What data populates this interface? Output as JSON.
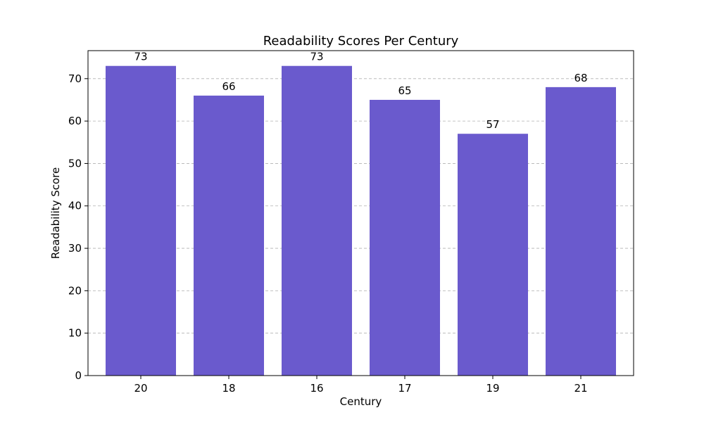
{
  "chart_data": {
    "type": "bar",
    "title": "Readability Scores Per Century",
    "xlabel": "Century",
    "ylabel": "Readability Score",
    "categories": [
      "20",
      "18",
      "16",
      "17",
      "19",
      "21"
    ],
    "values": [
      73,
      66,
      73,
      65,
      57,
      68
    ],
    "value_labels": [
      "73",
      "66",
      "73",
      "65",
      "57",
      "68"
    ],
    "ylim": [
      0,
      76.6
    ],
    "yticks": [
      0,
      10,
      20,
      30,
      40,
      50,
      60,
      70
    ],
    "grid": "y-dashed",
    "bar_color": "#6a5acd",
    "legend": "none"
  }
}
